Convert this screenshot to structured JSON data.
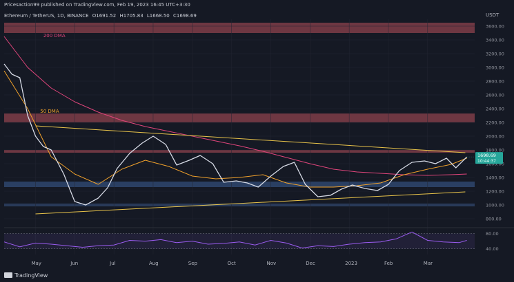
{
  "header": {
    "caption": "Pricesaction99 published on TradingView.com, Feb 19, 2023 16:45 UTC+3:30",
    "symbol": "Ethereum / TetherUS, 1D, BINANCE",
    "ohlc": [
      "O1691.52",
      "H1705.83",
      "L1668.50",
      "C1698.69"
    ],
    "unit": "USDT"
  },
  "brand": {
    "name": "TradingView"
  },
  "chart_data": {
    "type": "line",
    "title": "",
    "xlabel": "",
    "ylabel": "USDT",
    "ylim": [
      700,
      3700
    ],
    "y_ticks": [
      "3600.00",
      "3400.00",
      "3200.00",
      "3000.00",
      "2800.00",
      "2600.00",
      "2400.00",
      "2200.00",
      "2000.00",
      "1800.00",
      "1600.00",
      "1400.00",
      "1200.00",
      "1000.00",
      "800.00"
    ],
    "x_ticks": [
      "May",
      "Jun",
      "Jul",
      "Aug",
      "Sep",
      "Oct",
      "Nov",
      "Dec",
      "2023",
      "Feb",
      "Mar"
    ],
    "last_price": {
      "value": 1698.69,
      "label": "1698.69",
      "timer": "10:44:37"
    },
    "series": [
      {
        "name": "200 DMA",
        "color": "#e0457b",
        "x": [
          0,
          15,
          30,
          45,
          60,
          75,
          90,
          105,
          120,
          135,
          150,
          165,
          180,
          195,
          210,
          225,
          240,
          255,
          270,
          285,
          295
        ],
        "y": [
          3450,
          3000,
          2700,
          2500,
          2350,
          2230,
          2140,
          2070,
          2000,
          1930,
          1860,
          1780,
          1690,
          1600,
          1520,
          1480,
          1460,
          1440,
          1430,
          1440,
          1450
        ]
      },
      {
        "name": "50 DMA",
        "color": "#f0a12b",
        "x": [
          0,
          15,
          30,
          45,
          60,
          75,
          90,
          105,
          120,
          135,
          150,
          165,
          180,
          195,
          210,
          225,
          240,
          255,
          270,
          285,
          295
        ],
        "y": [
          2950,
          2400,
          1700,
          1450,
          1300,
          1520,
          1650,
          1560,
          1420,
          1380,
          1400,
          1440,
          1320,
          1260,
          1260,
          1280,
          1320,
          1440,
          1520,
          1590,
          1680
        ]
      },
      {
        "name": "",
        "color": "#d6dae5",
        "x": [
          0,
          5,
          10,
          15,
          20,
          25,
          30,
          38,
          45,
          52,
          60,
          66,
          72,
          80,
          88,
          95,
          103,
          110,
          118,
          125,
          133,
          140,
          148,
          155,
          162,
          170,
          178,
          185,
          192,
          200,
          208,
          215,
          222,
          230,
          238,
          245,
          252,
          260,
          268,
          275,
          282,
          288,
          295
        ],
        "y": [
          3050,
          2900,
          2850,
          2300,
          2000,
          1850,
          1800,
          1450,
          1050,
          1000,
          1100,
          1250,
          1530,
          1750,
          1900,
          2000,
          1880,
          1580,
          1650,
          1720,
          1600,
          1330,
          1350,
          1320,
          1260,
          1420,
          1560,
          1620,
          1300,
          1120,
          1140,
          1230,
          1290,
          1240,
          1210,
          1300,
          1500,
          1620,
          1640,
          1600,
          1680,
          1540,
          1698
        ]
      },
      {
        "name": "",
        "color": "#e8c34a",
        "x": [
          20,
          294
        ],
        "y": [
          2150,
          1760
        ]
      },
      {
        "name": "",
        "color": "#e8c34a",
        "x": [
          20,
          294
        ],
        "y": [
          870,
          1190
        ]
      }
    ],
    "zones": [
      {
        "color": "#b8505b",
        "from": 3500,
        "to": 3650
      },
      {
        "color": "#b8505b",
        "from": 2200,
        "to": 2330
      },
      {
        "color": "#b8505b",
        "from": 1760,
        "to": 1800
      },
      {
        "color": "#3c5f96",
        "from": 1260,
        "to": 1340
      },
      {
        "color": "#3c5f96",
        "from": 980,
        "to": 1020
      }
    ],
    "labels": [
      {
        "text": "200 DMA",
        "color": "#e0457b",
        "x": 25,
        "y": 3440
      },
      {
        "text": "50 DMA",
        "color": "#f0a12b",
        "x": 23,
        "y": 2340
      }
    ],
    "rsi": {
      "ylim": [
        25,
        90
      ],
      "ticks": [
        "80.00",
        "40.00"
      ],
      "bands": [
        40,
        80
      ],
      "color": "#9b5cf0",
      "x": [
        0,
        10,
        20,
        30,
        40,
        50,
        60,
        70,
        80,
        90,
        100,
        110,
        120,
        130,
        140,
        150,
        160,
        170,
        180,
        190,
        200,
        210,
        220,
        230,
        240,
        250,
        260,
        270,
        280,
        290,
        295
      ],
      "y": [
        58,
        45,
        55,
        52,
        48,
        44,
        48,
        50,
        62,
        60,
        64,
        56,
        60,
        52,
        54,
        58,
        50,
        62,
        55,
        42,
        48,
        46,
        52,
        56,
        58,
        66,
        84,
        62,
        58,
        56,
        62
      ]
    }
  }
}
